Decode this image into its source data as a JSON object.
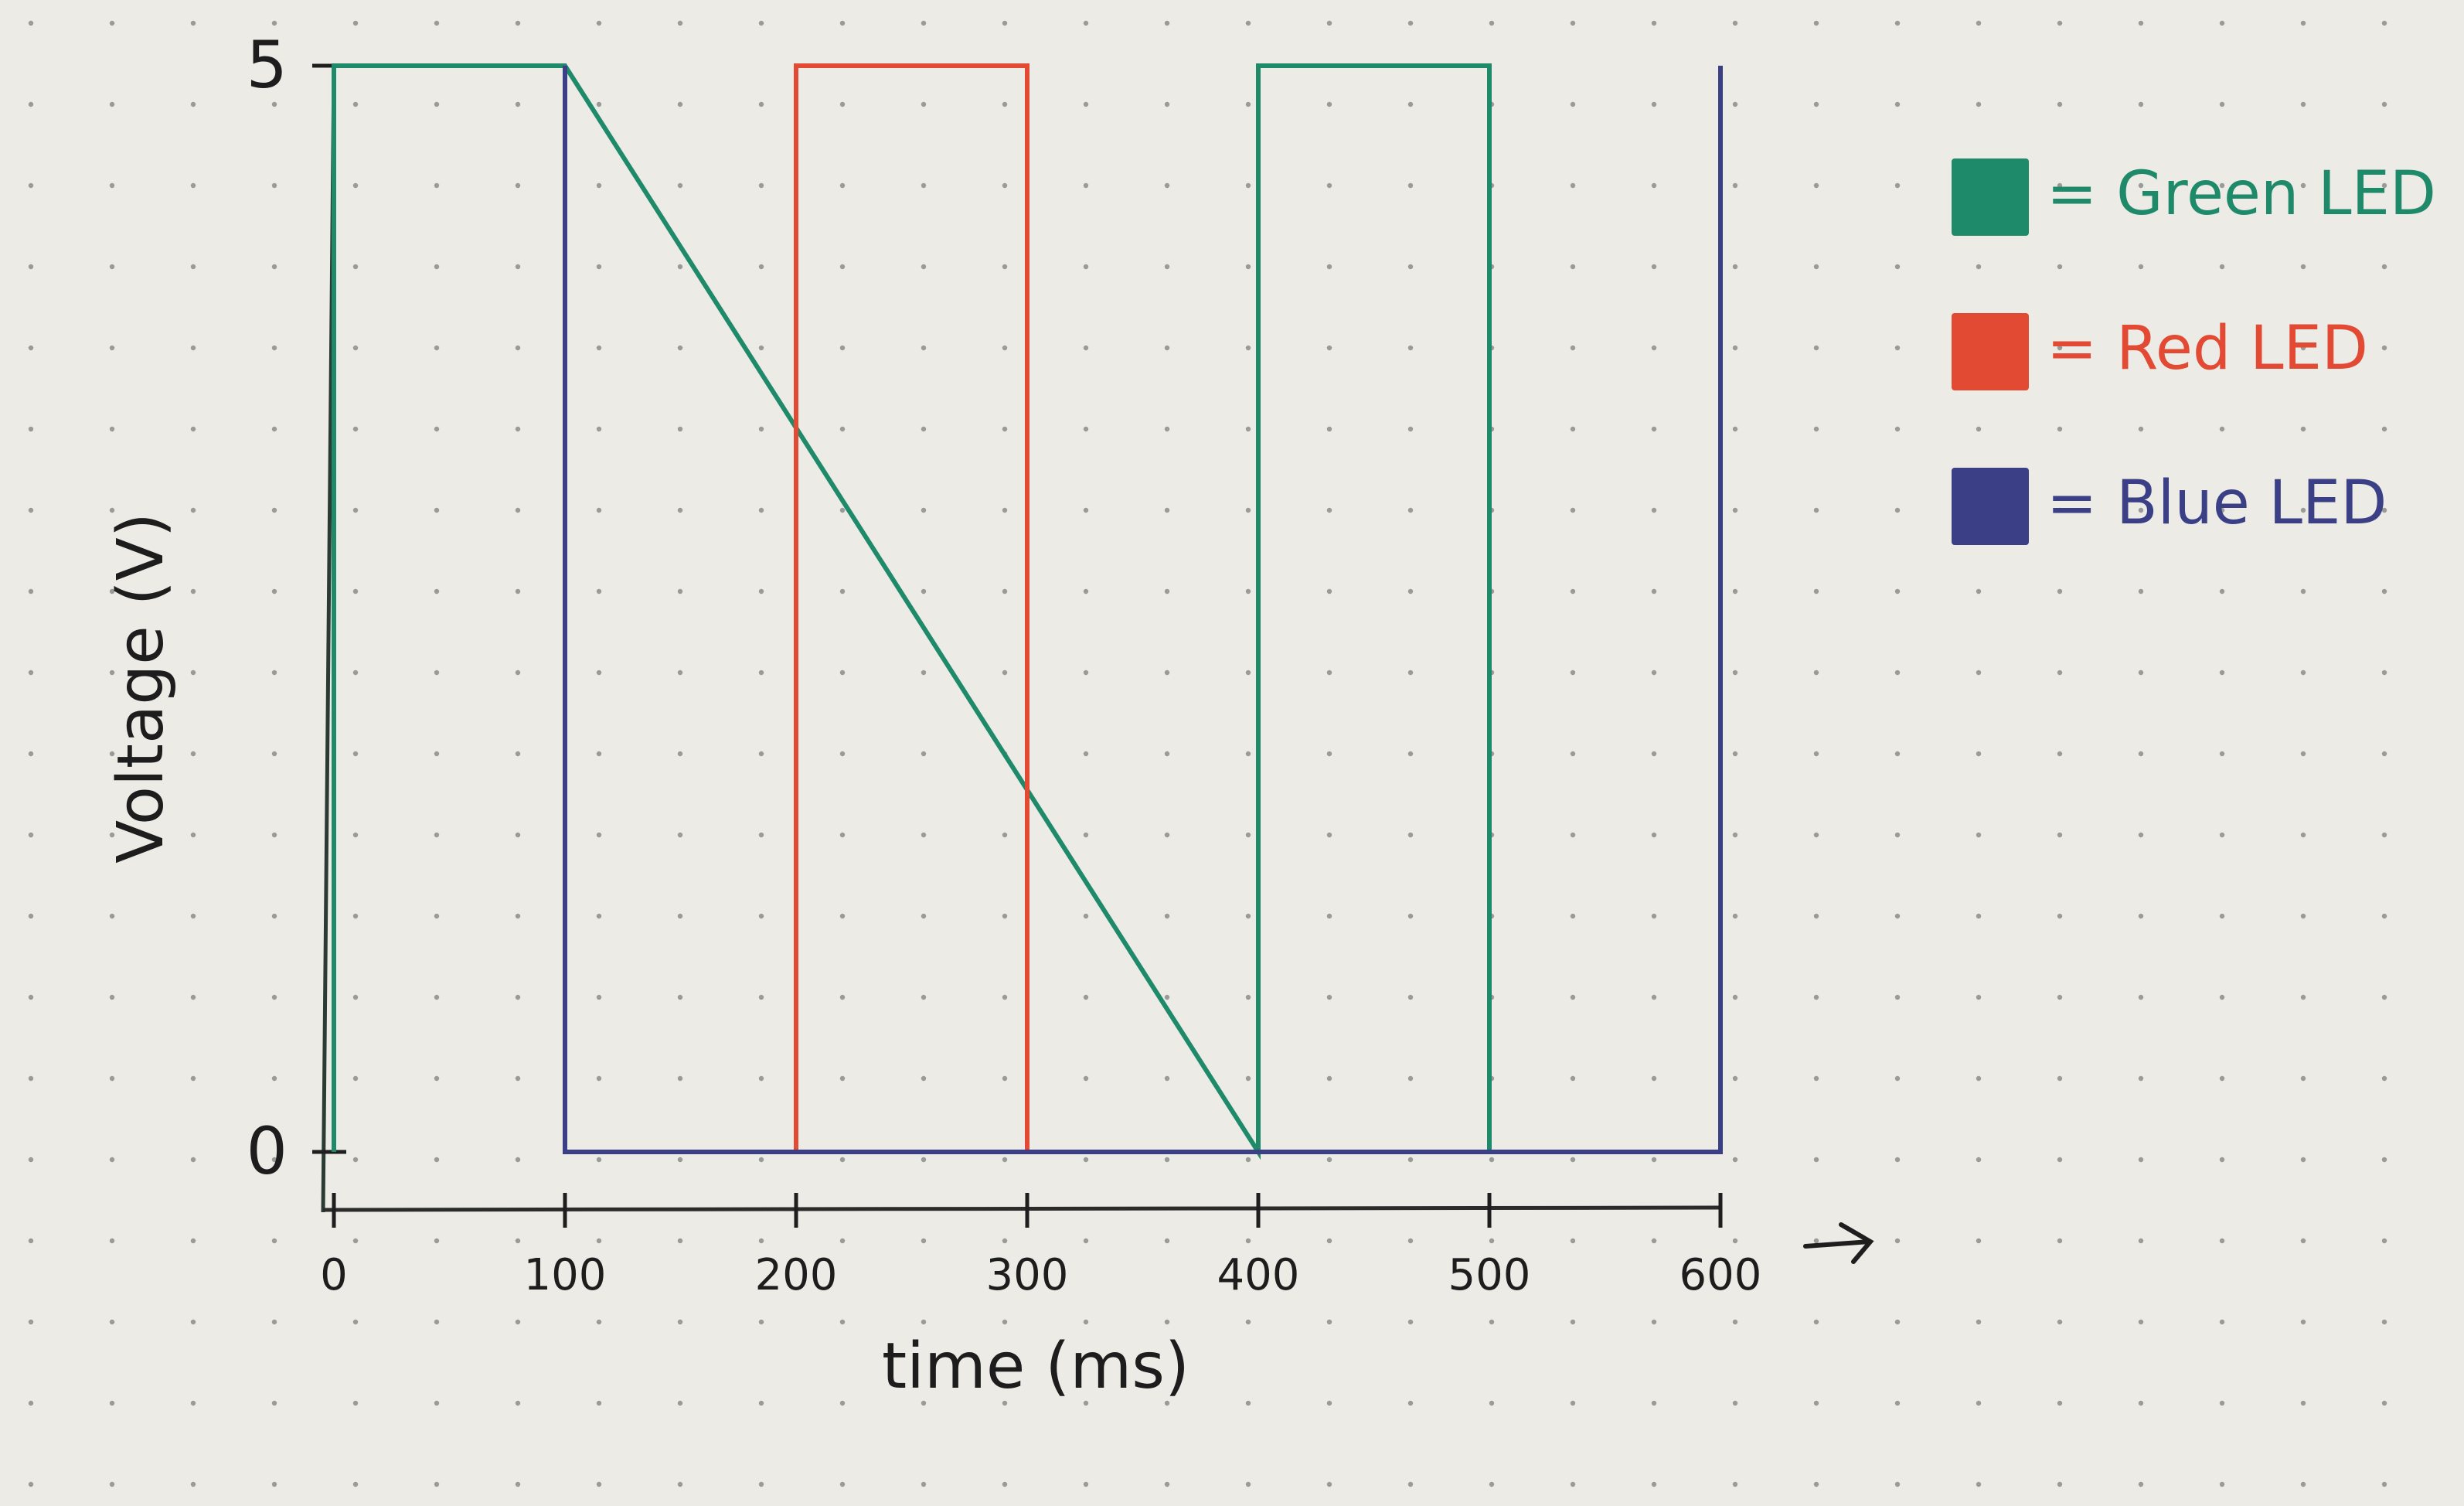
{
  "chart_data": {
    "type": "line",
    "title": "",
    "xlabel": "time (ms)",
    "ylabel": "Voltage (V)",
    "xlim": [
      0,
      600
    ],
    "ylim": [
      0,
      5
    ],
    "x_ticks": [
      "0",
      "100",
      "200",
      "300",
      "400",
      "500",
      "600"
    ],
    "y_ticks": [
      "0",
      "5"
    ],
    "x_axis_arrow": "→",
    "grid": "dot grid paper",
    "legend_position": "top-right",
    "series": [
      {
        "name": "Green LED",
        "color": "#1f8a6a",
        "points": [
          [
            0,
            0
          ],
          [
            0,
            5
          ],
          [
            100,
            5
          ],
          [
            400,
            0
          ],
          [
            400,
            5
          ],
          [
            500,
            5
          ],
          [
            500,
            0
          ],
          [
            600,
            0
          ]
        ]
      },
      {
        "name": "Red LED",
        "color": "#e24a33",
        "points": [
          [
            200,
            0
          ],
          [
            200,
            5
          ],
          [
            300,
            5
          ],
          [
            300,
            0
          ],
          [
            400,
            0
          ]
        ]
      },
      {
        "name": "Blue LED",
        "color": "#3a3f86",
        "points": [
          [
            100,
            5
          ],
          [
            100,
            0
          ],
          [
            200,
            0
          ],
          [
            600,
            0
          ],
          [
            600,
            5
          ]
        ]
      }
    ],
    "legend": [
      {
        "label": "= Green LED",
        "color": "#1f8a6a"
      },
      {
        "label": "= Red LED",
        "color": "#e24a33"
      },
      {
        "label": "= Blue LED",
        "color": "#3a3f86"
      }
    ]
  }
}
